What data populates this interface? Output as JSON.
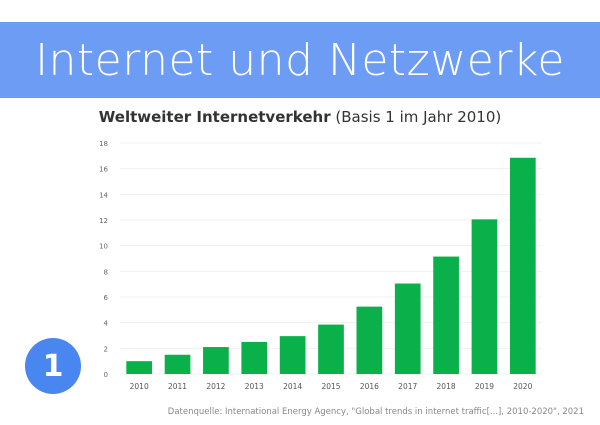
{
  "slide": {
    "title": "Internet und Netzwerke",
    "number": "1",
    "source": "Datenquelle: International Energy Agency, \"Global trends in internet traffic[...], 2010-2020\", 2021",
    "colors": {
      "banner": "#6d9cf4",
      "badge": "#4a86ef",
      "bar": "#0ab04a"
    }
  },
  "chart_data": {
    "type": "bar",
    "title_bold": "Weltweiter Internetverkehr",
    "title_rest": "(Basis 1 im Jahr 2010)",
    "categories": [
      "2010",
      "2011",
      "2012",
      "2013",
      "2014",
      "2015",
      "2016",
      "2017",
      "2018",
      "2019",
      "2020"
    ],
    "values": [
      1.0,
      1.5,
      2.1,
      2.5,
      2.95,
      3.85,
      5.25,
      7.05,
      9.15,
      12.05,
      16.85
    ],
    "yticks": [
      0,
      2,
      4,
      6,
      8,
      10,
      12,
      14,
      16,
      18
    ],
    "ylim": [
      0,
      18
    ],
    "xlabel": "",
    "ylabel": "",
    "grid": true
  }
}
